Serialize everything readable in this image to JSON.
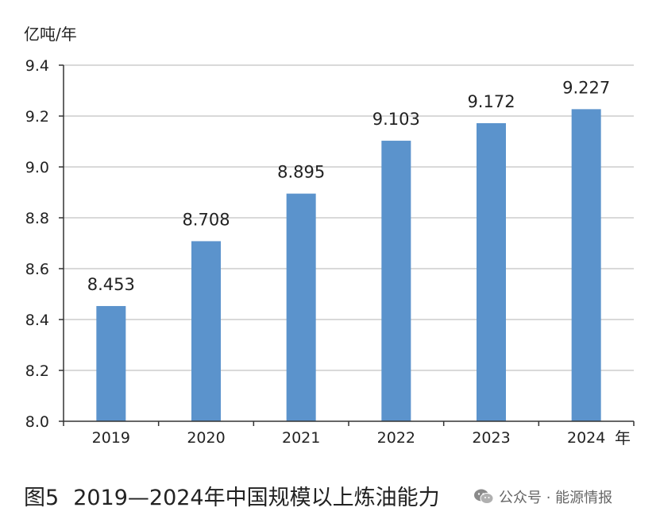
{
  "chart_data": {
    "type": "bar",
    "categories": [
      "2019",
      "2020",
      "2021",
      "2022",
      "2023",
      "2024"
    ],
    "values": [
      8.453,
      8.708,
      8.895,
      9.103,
      9.172,
      9.227
    ],
    "data_labels": [
      "8.453",
      "8.708",
      "8.895",
      "9.103",
      "9.172",
      "9.227"
    ],
    "ylabel": "亿吨/年",
    "xlabel": "年",
    "ylim": [
      8.0,
      9.4
    ],
    "yticks": [
      8.0,
      8.2,
      8.4,
      8.6,
      8.8,
      9.0,
      9.2,
      9.4
    ],
    "ytick_labels": [
      "8.0",
      "8.2",
      "8.4",
      "8.6",
      "8.8",
      "9.0",
      "9.2",
      "9.4"
    ],
    "grid": true,
    "bar_color": "#5b93cc"
  },
  "caption": {
    "figure_number": "图5",
    "title": "2019—2024年中国规模以上炼油能力"
  },
  "watermark": {
    "text": "公众号 · 能源情报",
    "icon": "wechat-icon"
  }
}
